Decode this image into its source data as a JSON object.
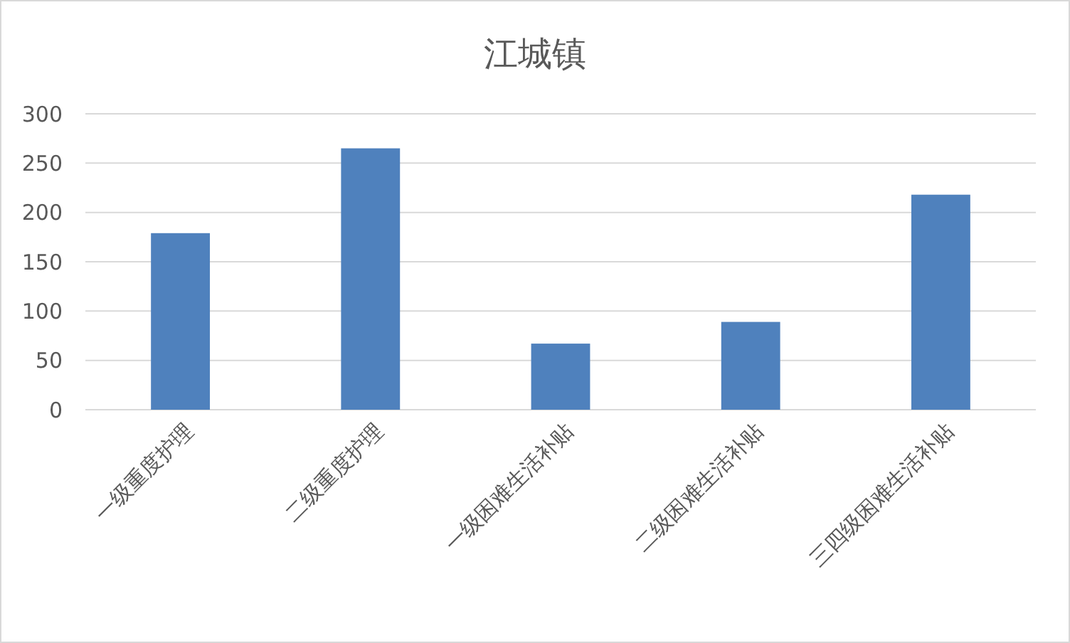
{
  "chart_data": {
    "type": "bar",
    "title": "江城镇",
    "categories": [
      "一级重度护理",
      "二级重度护理",
      "一级困难生活补贴",
      "二级困难生活补贴",
      "三四级困难生活补贴"
    ],
    "values": [
      179,
      265,
      67,
      89,
      218
    ],
    "color": "#4f81bd",
    "ylim": [
      0,
      300
    ],
    "yticks": [
      0,
      50,
      100,
      150,
      200,
      250,
      300
    ],
    "grid": "y"
  }
}
